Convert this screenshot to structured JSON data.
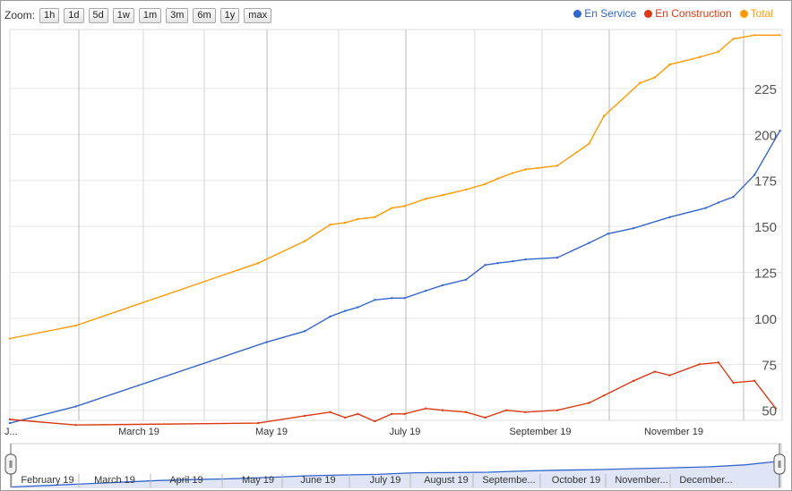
{
  "zoom": {
    "label": "Zoom:",
    "buttons": [
      "1h",
      "1d",
      "5d",
      "1w",
      "1m",
      "3m",
      "6m",
      "1y",
      "max"
    ]
  },
  "legend": [
    {
      "name": "En Service",
      "color": "#3366cc"
    },
    {
      "name": "En Construction",
      "color": "#dc3912"
    },
    {
      "name": "Total",
      "color": "#ff9900"
    }
  ],
  "chart_data": {
    "type": "line",
    "x_axis_type": "date",
    "x_tick_labels": [
      "J...",
      "March 19",
      "May 19",
      "July 19",
      "September 19",
      "November 19"
    ],
    "y_ticks": [
      50,
      75,
      100,
      125,
      150,
      175,
      200,
      225
    ],
    "ylim": [
      40,
      250
    ],
    "grid": true,
    "legend_position": "top-right",
    "y_axis_side": "right",
    "series": [
      {
        "name": "En Service",
        "color": "#3366cc",
        "x": [
          "2019-01-01",
          "2019-02-01",
          "2019-05-02",
          "2019-05-20",
          "2019-06-01",
          "2019-06-08",
          "2019-06-14",
          "2019-06-22",
          "2019-06-30",
          "2019-07-06",
          "2019-07-16",
          "2019-07-24",
          "2019-08-04",
          "2019-08-13",
          "2019-08-19",
          "2019-08-26",
          "2019-09-01",
          "2019-09-16",
          "2019-10-01",
          "2019-10-10",
          "2019-10-22",
          "2019-11-08",
          "2019-11-25",
          "2019-12-01",
          "2019-12-08",
          "2019-12-18",
          "2019-12-30"
        ],
        "values": [
          43,
          52,
          87,
          93,
          101,
          104,
          106,
          110,
          111,
          111,
          115,
          118,
          121,
          129,
          130,
          131,
          132,
          133,
          141,
          146,
          149,
          155,
          160,
          163,
          166,
          178,
          202
        ]
      },
      {
        "name": "En Construction",
        "color": "#dc3912",
        "x": [
          "2019-01-01",
          "2019-02-01",
          "2019-04-28",
          "2019-05-20",
          "2019-06-01",
          "2019-06-08",
          "2019-06-14",
          "2019-06-22",
          "2019-06-30",
          "2019-07-06",
          "2019-07-16",
          "2019-07-24",
          "2019-08-04",
          "2019-08-13",
          "2019-08-23",
          "2019-09-01",
          "2019-09-16",
          "2019-10-01",
          "2019-10-08",
          "2019-10-22",
          "2019-11-01",
          "2019-11-08",
          "2019-11-22",
          "2019-12-01",
          "2019-12-08",
          "2019-12-18",
          "2019-12-28"
        ],
        "values": [
          45,
          42,
          43,
          47,
          49,
          46,
          48,
          44,
          48,
          48,
          51,
          50,
          49,
          46,
          50,
          49,
          50,
          54,
          58,
          66,
          71,
          69,
          75,
          76,
          65,
          66,
          51
        ]
      },
      {
        "name": "Total",
        "color": "#ff9900",
        "x": [
          "2019-01-01",
          "2019-02-01",
          "2019-04-28",
          "2019-05-20",
          "2019-06-01",
          "2019-06-08",
          "2019-06-14",
          "2019-06-22",
          "2019-06-30",
          "2019-07-06",
          "2019-07-16",
          "2019-07-24",
          "2019-08-04",
          "2019-08-13",
          "2019-08-19",
          "2019-08-26",
          "2019-09-01",
          "2019-09-16",
          "2019-10-01",
          "2019-10-08",
          "2019-10-25",
          "2019-11-01",
          "2019-11-08",
          "2019-11-22",
          "2019-12-01",
          "2019-12-08",
          "2019-12-18",
          "2019-12-30"
        ],
        "values": [
          89,
          96,
          130,
          142,
          151,
          152,
          154,
          155,
          160,
          161,
          165,
          167,
          170,
          173,
          176,
          179,
          181,
          183,
          195,
          210,
          228,
          231,
          238,
          242,
          245,
          252,
          254,
          254
        ]
      }
    ]
  },
  "navigator": {
    "labels": [
      "February 19",
      "March 19",
      "April 19",
      "May 19",
      "June 19",
      "July 19",
      "August 19",
      "Septembe...",
      "October 19",
      "November...",
      "December..."
    ],
    "values": [
      43,
      52,
      62,
      72,
      82,
      88,
      93,
      101,
      111,
      116,
      120,
      130,
      131,
      133,
      141,
      146,
      149,
      155,
      160,
      166,
      178,
      202
    ],
    "handle_left_glyph": "‖",
    "handle_right_glyph": "‖"
  }
}
